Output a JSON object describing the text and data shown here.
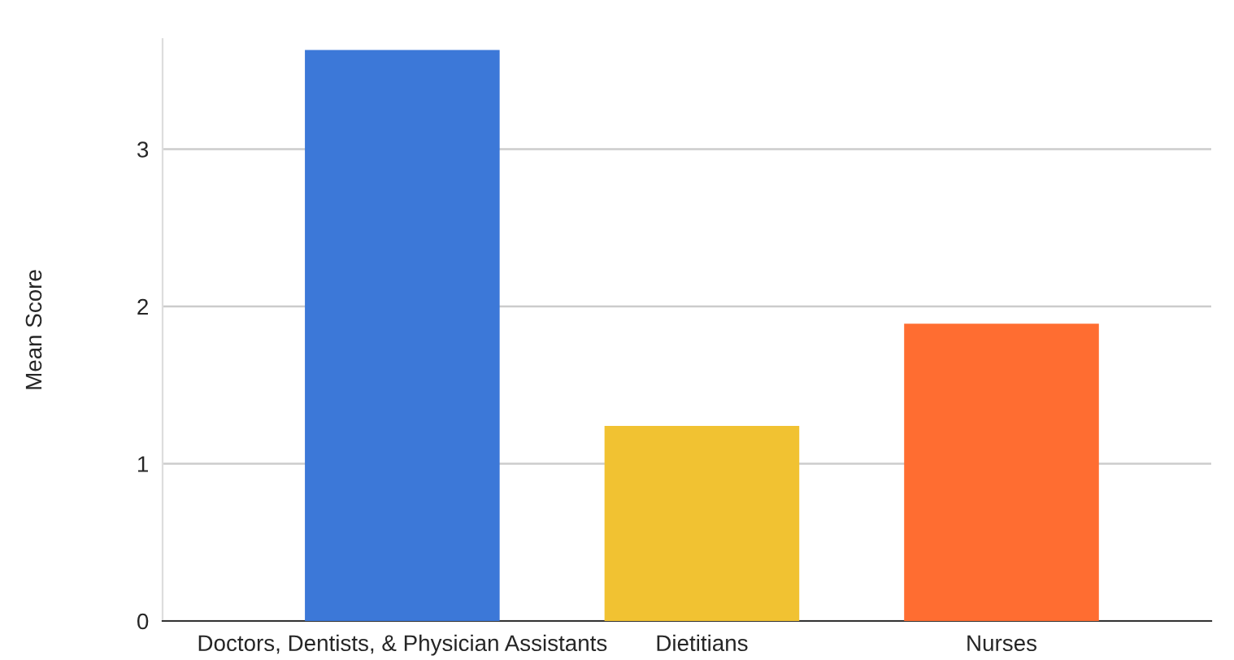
{
  "chart_data": {
    "type": "bar",
    "ylabel": "Mean Score",
    "categories": [
      "Doctors, Dentists, & Physician Assistants",
      "Dietitians",
      "Nurses"
    ],
    "values": [
      3.63,
      1.24,
      1.89
    ],
    "colors": [
      "#3c78d8",
      "#f1c232",
      "#ff6d31"
    ],
    "ylim": [
      0,
      3.7
    ],
    "yticks": [
      0,
      1,
      2,
      3
    ],
    "grid": "y",
    "legend": false
  }
}
